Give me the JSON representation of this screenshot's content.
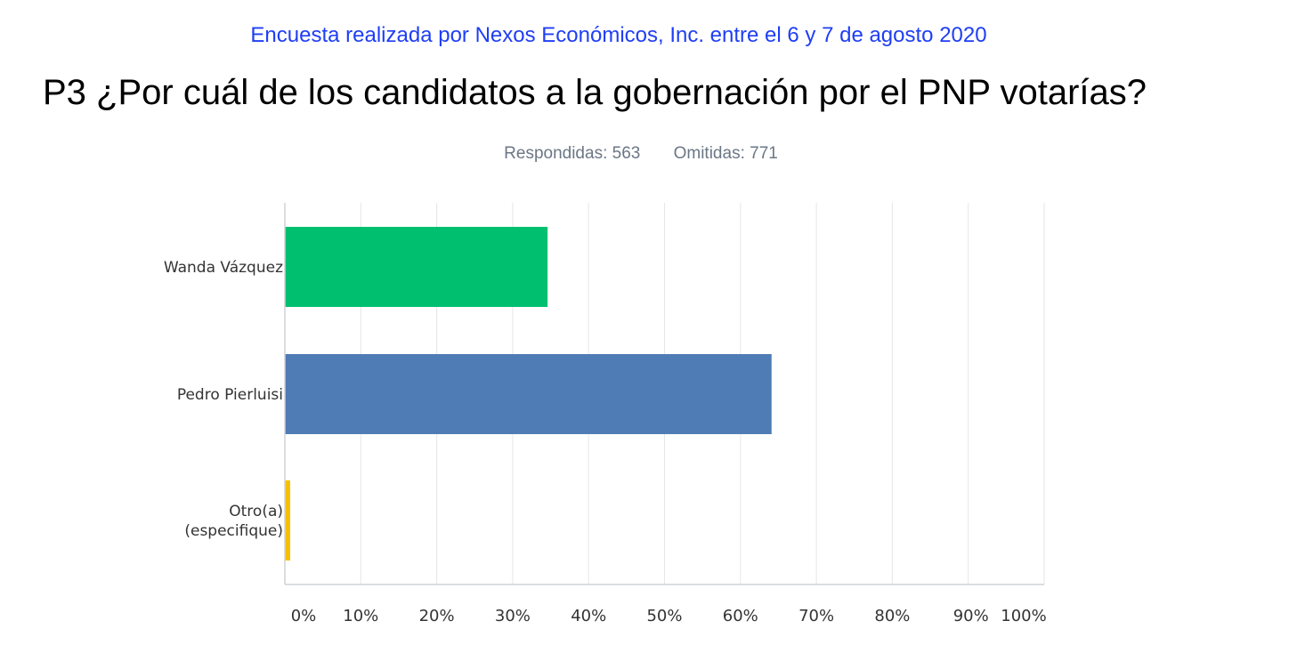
{
  "header": {
    "source": "Encuesta realizada por Nexos Económicos, Inc. entre el 6 y 7 de agosto 2020",
    "question": "P3 ¿Por cuál de los candidatos a la gobernación por el PNP votarías?",
    "answered": "Respondidas: 563",
    "skipped": "Omitidas: 771"
  },
  "chart_data": {
    "type": "bar",
    "orientation": "horizontal",
    "categories": [
      "Wanda Vázquez",
      "Pedro Pierluisi",
      "Otro(a) (especifique)"
    ],
    "values": [
      34.6,
      64.1,
      0.7
    ],
    "xlim": [
      0,
      100
    ],
    "xticks": [
      "0%",
      "10%",
      "20%",
      "30%",
      "40%",
      "50%",
      "60%",
      "70%",
      "80%",
      "90%",
      "100%"
    ],
    "grid": true,
    "colors": [
      "#00bf6f",
      "#507cb6",
      "#f9be00"
    ]
  },
  "colors": {
    "source_text": "#1f3ef5",
    "stats_text": "#6b7785",
    "gridline": "#e4e6e8",
    "axis": "#cfd2d5"
  }
}
